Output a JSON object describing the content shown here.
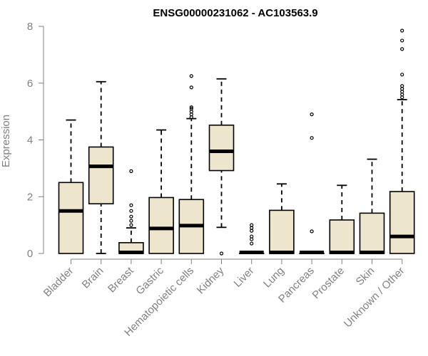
{
  "chart_data": {
    "type": "boxplot",
    "title": "ENSG00000231062 - AC103563.9",
    "xlabel": "",
    "ylabel": "Expression",
    "ylim": [
      0,
      8
    ],
    "yticks": [
      0,
      2,
      4,
      6,
      8
    ],
    "box_color": "#EDE6CC",
    "categories": [
      "Bladder",
      "Brain",
      "Breast",
      "Gastric",
      "Hematopoietic cells",
      "Kidney",
      "Liver",
      "Lung",
      "Pancreas",
      "Prostate",
      "Skin",
      "Unknown / Other"
    ],
    "boxes": [
      {
        "whisker_low": 0,
        "q1": 0,
        "median": 1.5,
        "q3": 2.5,
        "whisker_high": 4.7,
        "outliers": []
      },
      {
        "whisker_low": 0,
        "q1": 1.75,
        "median": 3.07,
        "q3": 3.75,
        "whisker_high": 6.05,
        "outliers": []
      },
      {
        "whisker_low": 0,
        "q1": 0,
        "median": 0.02,
        "q3": 0.38,
        "whisker_high": 0.9,
        "outliers": [
          1.0,
          1.15,
          1.3,
          1.5,
          1.7,
          2.9
        ]
      },
      {
        "whisker_low": 0,
        "q1": 0,
        "median": 0.88,
        "q3": 1.97,
        "whisker_high": 4.35,
        "outliers": []
      },
      {
        "whisker_low": 0,
        "q1": 0,
        "median": 0.98,
        "q3": 1.9,
        "whisker_high": 4.75,
        "outliers": [
          4.8,
          4.9,
          5.0,
          5.1,
          5.15,
          5.85,
          6.25
        ]
      },
      {
        "whisker_low": 0.92,
        "q1": 2.92,
        "median": 3.6,
        "q3": 4.52,
        "whisker_high": 6.15,
        "outliers": [
          0
        ]
      },
      {
        "whisker_low": 0,
        "q1": 0,
        "median": 0,
        "q3": 0,
        "whisker_high": 0,
        "outliers": [
          0.35,
          0.5,
          0.6,
          0.8,
          0.9,
          1.0
        ]
      },
      {
        "whisker_low": 0,
        "q1": 0,
        "median": 0.02,
        "q3": 1.52,
        "whisker_high": 2.45,
        "outliers": []
      },
      {
        "whisker_low": 0,
        "q1": 0,
        "median": 0,
        "q3": 0,
        "whisker_high": 0,
        "outliers": [
          0.78,
          4.07,
          4.9
        ]
      },
      {
        "whisker_low": 0,
        "q1": 0,
        "median": 0.02,
        "q3": 1.18,
        "whisker_high": 2.4,
        "outliers": []
      },
      {
        "whisker_low": 0,
        "q1": 0,
        "median": 0.02,
        "q3": 1.42,
        "whisker_high": 3.32,
        "outliers": []
      },
      {
        "whisker_low": 0,
        "q1": 0,
        "median": 0.6,
        "q3": 2.18,
        "whisker_high": 5.42,
        "outliers": [
          5.5,
          5.6,
          5.7,
          5.8,
          5.9,
          6.3,
          7.2,
          7.5,
          7.85
        ]
      }
    ]
  }
}
